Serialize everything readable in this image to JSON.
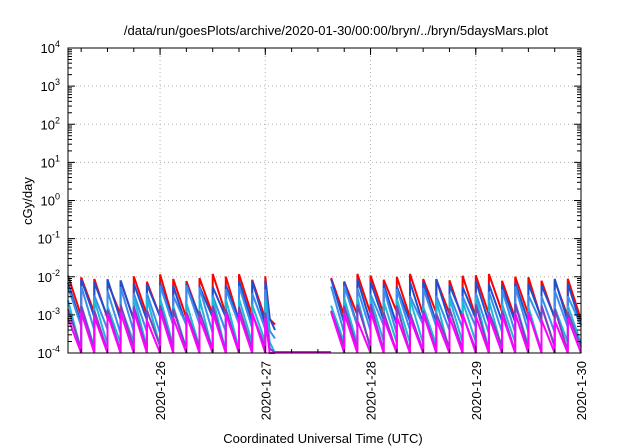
{
  "chart_data": {
    "type": "line",
    "title": "/data/run/goesPlots/archive/2020-01-30/00:00/bryn/../bryn/5daysMars.plot",
    "xlabel": "Coordinated Universal Time (UTC)",
    "ylabel": "cGy/day",
    "x_range": [
      "2020-01-25T03:00",
      "2020-01-30T00:00"
    ],
    "xticks": [
      "2020-1-26",
      "2020-1-27",
      "2020-1-28",
      "2020-1-29",
      "2020-1-30"
    ],
    "y_scale": "log",
    "ylim": [
      0.0001,
      10000
    ],
    "yticks": [
      {
        "base": "10",
        "exp": "-4"
      },
      {
        "base": "10",
        "exp": "-3"
      },
      {
        "base": "10",
        "exp": "-2"
      },
      {
        "base": "10",
        "exp": "-1"
      },
      {
        "base": "10",
        "exp": "0"
      },
      {
        "base": "10",
        "exp": "1"
      },
      {
        "base": "10",
        "exp": "2"
      },
      {
        "base": "10",
        "exp": "3"
      },
      {
        "base": "10",
        "exp": "4"
      }
    ],
    "grid": true,
    "data_gap": [
      "2020-01-27T01:00",
      "2020-01-27T15:00"
    ],
    "segments": [
      [
        "2020-01-25T03:00",
        "2020-01-27T01:00"
      ],
      [
        "2020-01-27T15:00",
        "2020-01-30T00:00"
      ]
    ],
    "sawtooth_period_hours": 3,
    "series": [
      {
        "color": "#ff0000",
        "peak_range": [
          0.007,
          0.012
        ],
        "trough_range": [
          0.0007,
          0.0012
        ]
      },
      {
        "color": "#1f4fd0",
        "peak_range": [
          0.005,
          0.009
        ],
        "trough_range": [
          0.0005,
          0.0009
        ]
      },
      {
        "color": "#3a8cf0",
        "peak_range": [
          0.003,
          0.006
        ],
        "trough_range": [
          0.0003,
          0.0006
        ]
      },
      {
        "color": "#20b8d8",
        "peak_range": [
          0.0015,
          0.003
        ],
        "trough_range": [
          0.0001,
          0.0002
        ]
      },
      {
        "color": "#8040c0",
        "peak_range": [
          0.001,
          0.002
        ],
        "trough_range": [
          0.0001,
          0.00015
        ]
      },
      {
        "color": "#ff00ff",
        "peak_range": [
          0.0007,
          0.0013
        ],
        "trough_range": [
          0.0001,
          0.0001
        ]
      }
    ]
  }
}
